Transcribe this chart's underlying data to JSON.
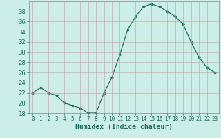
{
  "x": [
    0,
    1,
    2,
    3,
    4,
    5,
    6,
    7,
    8,
    9,
    10,
    11,
    12,
    13,
    14,
    15,
    16,
    17,
    18,
    19,
    20,
    21,
    22,
    23
  ],
  "y": [
    22,
    23,
    22,
    21.5,
    20,
    19.5,
    19,
    18,
    18,
    22,
    25,
    29.5,
    34.5,
    37,
    39,
    39.5,
    39,
    38,
    37,
    35.5,
    32,
    29,
    27,
    26
  ],
  "line_color": "#1a6b5e",
  "marker": "D",
  "marker_size": 2.0,
  "bg_color": "#cceee8",
  "grid_color": "#b0ccc8",
  "xlabel": "Humidex (Indice chaleur)",
  "xlabel_fontsize": 7,
  "tick_fontsize": 6.5,
  "ylim": [
    18,
    40
  ],
  "xlim": [
    -0.5,
    23.5
  ],
  "yticks": [
    18,
    20,
    22,
    24,
    26,
    28,
    30,
    32,
    34,
    36,
    38
  ],
  "xticks": [
    0,
    1,
    2,
    3,
    4,
    5,
    6,
    7,
    8,
    9,
    10,
    11,
    12,
    13,
    14,
    15,
    16,
    17,
    18,
    19,
    20,
    21,
    22,
    23
  ]
}
